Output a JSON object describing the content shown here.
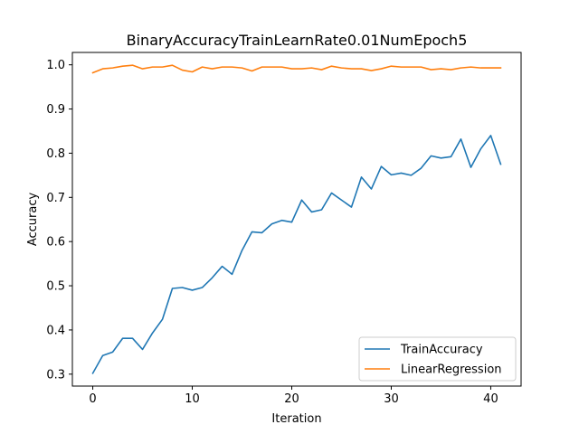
{
  "chart_data": {
    "type": "line",
    "title": "BinaryAccuracyTrainLearnRate0.01NumEpoch5",
    "xlabel": "Iteration",
    "ylabel": "Accuracy",
    "xlim": [
      -2.05,
      43.05
    ],
    "ylim": [
      0.273,
      1.028
    ],
    "xticks": [
      0,
      10,
      20,
      30,
      40
    ],
    "yticks": [
      0.3,
      0.4,
      0.5,
      0.6,
      0.7,
      0.8,
      0.9,
      1.0
    ],
    "ytick_labels": [
      "0.3",
      "0.4",
      "0.5",
      "0.6",
      "0.7",
      "0.8",
      "0.9",
      "1.0"
    ],
    "legend_position": "lower-right",
    "grid": false,
    "series": [
      {
        "name": "TrainAccuracy",
        "color": "#1f77b4",
        "x": [
          0,
          1,
          2,
          3,
          4,
          5,
          6,
          7,
          8,
          9,
          10,
          11,
          12,
          13,
          14,
          15,
          16,
          17,
          18,
          19,
          20,
          21,
          22,
          23,
          24,
          25,
          26,
          27,
          28,
          29,
          30,
          31,
          32,
          33,
          34,
          35,
          36,
          37,
          38,
          39,
          40,
          41
        ],
        "values": [
          0.302,
          0.342,
          0.35,
          0.381,
          0.381,
          0.356,
          0.393,
          0.424,
          0.494,
          0.496,
          0.49,
          0.496,
          0.518,
          0.544,
          0.526,
          0.58,
          0.622,
          0.62,
          0.64,
          0.648,
          0.644,
          0.694,
          0.667,
          0.672,
          0.71,
          0.694,
          0.678,
          0.746,
          0.719,
          0.77,
          0.751,
          0.755,
          0.75,
          0.766,
          0.794,
          0.789,
          0.792,
          0.832,
          0.768,
          0.81,
          0.84,
          0.775
        ]
      },
      {
        "name": "LinearRegression",
        "color": "#ff7f0e",
        "x": [
          0,
          1,
          2,
          3,
          4,
          5,
          6,
          7,
          8,
          9,
          10,
          11,
          12,
          13,
          14,
          15,
          16,
          17,
          18,
          19,
          20,
          21,
          22,
          23,
          24,
          25,
          26,
          27,
          28,
          29,
          30,
          31,
          32,
          33,
          34,
          35,
          36,
          37,
          38,
          39,
          40,
          41
        ],
        "values": [
          0.982,
          0.991,
          0.993,
          0.997,
          0.999,
          0.991,
          0.995,
          0.995,
          0.999,
          0.988,
          0.984,
          0.995,
          0.991,
          0.995,
          0.995,
          0.993,
          0.986,
          0.995,
          0.995,
          0.995,
          0.991,
          0.991,
          0.993,
          0.989,
          0.997,
          0.993,
          0.991,
          0.991,
          0.987,
          0.991,
          0.997,
          0.995,
          0.995,
          0.995,
          0.989,
          0.991,
          0.989,
          0.993,
          0.995,
          0.993,
          0.993,
          0.993
        ]
      }
    ]
  }
}
